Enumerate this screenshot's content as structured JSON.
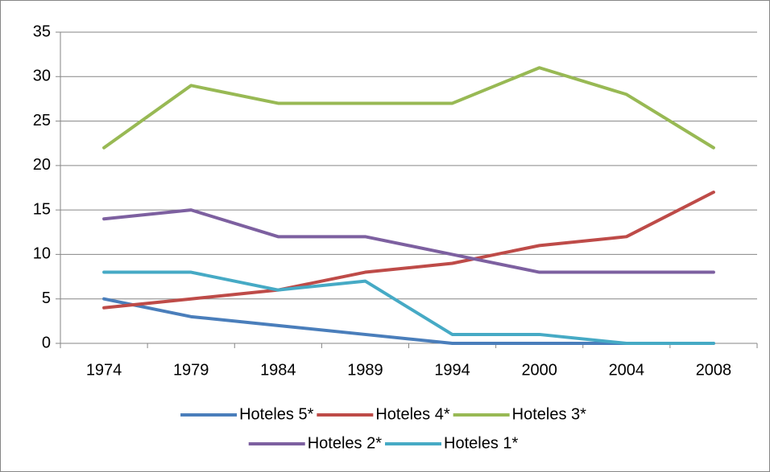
{
  "chart_data": {
    "type": "line",
    "categories": [
      "1974",
      "1979",
      "1984",
      "1989",
      "1994",
      "2000",
      "2004",
      "2008"
    ],
    "series": [
      {
        "name": "Hoteles 5*",
        "color": "#4a7ebb",
        "values": [
          5,
          3,
          2,
          1,
          0,
          0,
          0,
          0
        ]
      },
      {
        "name": "Hoteles 4*",
        "color": "#be4b48",
        "values": [
          4,
          5,
          6,
          8,
          9,
          11,
          12,
          17
        ]
      },
      {
        "name": "Hoteles 3*",
        "color": "#98b954",
        "values": [
          22,
          29,
          27,
          27,
          27,
          31,
          28,
          22
        ]
      },
      {
        "name": "Hoteles 2*",
        "color": "#7d60a0",
        "values": [
          14,
          15,
          12,
          12,
          10,
          8,
          8,
          8
        ]
      },
      {
        "name": "Hoteles 1*",
        "color": "#46aac5",
        "values": [
          8,
          8,
          6,
          7,
          1,
          1,
          0,
          0
        ]
      }
    ],
    "ylim": [
      0,
      35
    ],
    "yticks": [
      0,
      5,
      10,
      15,
      20,
      25,
      30,
      35
    ],
    "grid": true,
    "legend": "bottom"
  }
}
